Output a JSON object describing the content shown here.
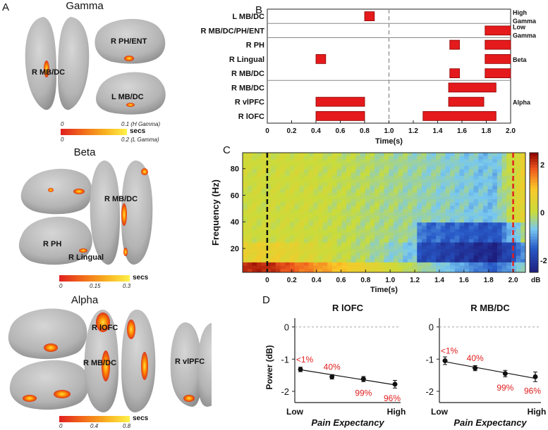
{
  "panel_labels": {
    "a": "A",
    "b": "B",
    "c": "C",
    "d": "D"
  },
  "panel_a": {
    "gamma": {
      "title": "Gamma",
      "labels": [
        "R PH/ENT",
        "R MB/DC",
        "L MB/DC"
      ],
      "colorbar": {
        "unit": "secs",
        "row1": {
          "min": "0",
          "max": "0.1 (H Gamma)"
        },
        "row2": {
          "min": "0",
          "max": "0.2 (L Gamma)"
        }
      }
    },
    "beta": {
      "title": "Beta",
      "labels": [
        "R MB/DC",
        "R PH",
        "R Lingual"
      ],
      "colorbar": {
        "unit": "secs",
        "ticks": [
          "0",
          "0.15",
          "0.3"
        ]
      }
    },
    "alpha": {
      "title": "Alpha",
      "labels": [
        "R lOFC",
        "R MB/DC",
        "R vlPFC"
      ],
      "colorbar": {
        "unit": "secs",
        "ticks": [
          "0",
          "0.4",
          "0.8"
        ]
      }
    }
  },
  "colors": {
    "bar_fill": "#e41a1c",
    "heat_min": "#1e1e7e",
    "heat_zero": "#c8dc3c",
    "heat_max": "#8b0000",
    "stim_line": "#111111",
    "end_line": "#e02020",
    "annot": "#e02020",
    "brain": "#b8b8b8"
  },
  "chart_data": [
    {
      "id": "B",
      "type": "bar",
      "orientation": "horizontal",
      "xlabel": "Time(s)",
      "xlim": [
        0,
        2.0
      ],
      "xticks": [
        "0",
        "0.2",
        "0.4",
        "0.6",
        "0.8",
        "1.0",
        "1.2",
        "1.4",
        "1.6",
        "1.8",
        "2.0"
      ],
      "rows": [
        "L MB/DC",
        "R MB/DC/PH/ENT",
        "R PH",
        "R Lingual",
        "R MB/DC",
        "R MB/DC",
        "R vlPFC",
        "R lOFC"
      ],
      "groups": [
        {
          "name": "High Gamma",
          "rows": [
            0
          ]
        },
        {
          "name": "Low Gamma",
          "rows": [
            1
          ]
        },
        {
          "name": "Beta",
          "rows": [
            2,
            3,
            4
          ]
        },
        {
          "name": "Alpha",
          "rows": [
            5,
            6,
            7
          ]
        }
      ],
      "intervals": [
        {
          "row": 0,
          "start": 0.8,
          "end": 0.88
        },
        {
          "row": 1,
          "start": 1.79,
          "end": 2.0
        },
        {
          "row": 2,
          "start": 1.5,
          "end": 1.58
        },
        {
          "row": 2,
          "start": 1.79,
          "end": 2.0
        },
        {
          "row": 3,
          "start": 0.4,
          "end": 0.48
        },
        {
          "row": 3,
          "start": 1.79,
          "end": 2.0
        },
        {
          "row": 4,
          "start": 1.5,
          "end": 1.58
        },
        {
          "row": 4,
          "start": 1.79,
          "end": 2.0
        },
        {
          "row": 5,
          "start": 1.49,
          "end": 1.88
        },
        {
          "row": 6,
          "start": 0.4,
          "end": 0.8
        },
        {
          "row": 6,
          "start": 1.49,
          "end": 1.78
        },
        {
          "row": 7,
          "start": 0.4,
          "end": 0.8
        },
        {
          "row": 7,
          "start": 1.28,
          "end": 1.88
        }
      ],
      "reference_line_x": 1.0
    },
    {
      "id": "C",
      "type": "heatmap",
      "xlabel": "Time(s)",
      "ylabel": "Frequency (Hz)",
      "xlim": [
        -0.2,
        2.1
      ],
      "ylim": [
        2,
        92
      ],
      "xticks": [
        "0",
        "0.2",
        "0.4",
        "0.6",
        "0.8",
        "1.0",
        "1.2",
        "1.4",
        "1.6",
        "1.8",
        "2.0"
      ],
      "yticks": [
        "20",
        "40",
        "60",
        "80"
      ],
      "colorbar": {
        "label": "dB",
        "ticks": [
          "2",
          "0",
          "-2"
        ],
        "range": [
          -2.5,
          2.5
        ]
      },
      "vertical_lines": [
        {
          "x": 0
        },
        {
          "x": 2.0
        }
      ]
    },
    {
      "id": "D-left",
      "type": "line",
      "title": "R lOFC",
      "xlabel": "Pain Expectancy",
      "ylabel": "Power (dB)",
      "xtick_labels": [
        "Low",
        "High"
      ],
      "ylim": [
        -2.35,
        0.1
      ],
      "yticks": [
        "0",
        "-1",
        "-2"
      ],
      "points": [
        {
          "label": "<1%",
          "y": -1.32,
          "err": 0.07
        },
        {
          "label": "40%",
          "y": -1.55,
          "err": 0.07
        },
        {
          "label": "99%",
          "y": -1.62,
          "err": 0.08
        },
        {
          "label": "96%",
          "y": -1.78,
          "err": 0.12
        }
      ],
      "fit": [
        -1.33,
        -1.8
      ]
    },
    {
      "id": "D-right",
      "type": "line",
      "title": "R MB/DC",
      "xlabel": "Pain Expectancy",
      "ylabel": "",
      "xtick_labels": [
        "Low",
        "High"
      ],
      "ylim": [
        -2.35,
        0.1
      ],
      "yticks": [
        "0",
        "-1",
        "-2"
      ],
      "points": [
        {
          "label": "<1%",
          "y": -1.05,
          "err": 0.12
        },
        {
          "label": "40%",
          "y": -1.28,
          "err": 0.08
        },
        {
          "label": "99%",
          "y": -1.45,
          "err": 0.1
        },
        {
          "label": "96%",
          "y": -1.55,
          "err": 0.15
        }
      ],
      "fit": [
        -1.08,
        -1.6
      ]
    }
  ]
}
